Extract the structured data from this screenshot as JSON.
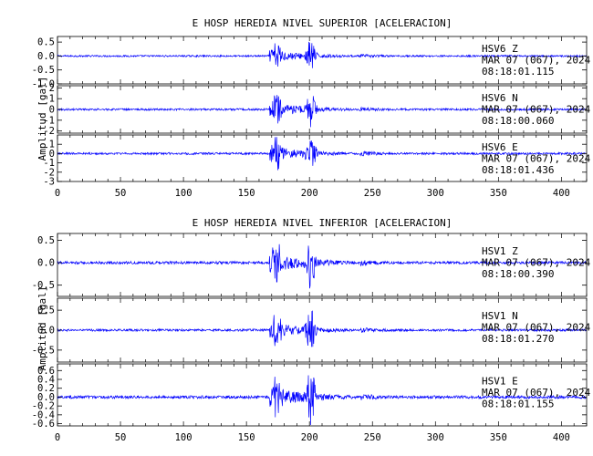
{
  "chart_data": [
    {
      "type": "line",
      "title": "E HOSP HEREDIA NIVEL SUPERIOR [ACELERACION]",
      "ylabel": "Amplitud [gal]",
      "xlabel": "",
      "xlim": [
        0,
        420
      ],
      "x_ticks": [
        "0",
        "50",
        "100",
        "150",
        "200",
        "250",
        "300",
        "350",
        "400"
      ],
      "line_color": "#0000ff",
      "grid": false,
      "panels": [
        {
          "name": "HSV6 Z",
          "label_lines": [
            "HSV6   Z",
            "MAR 07 (067), 2024",
            "08:18:01.115"
          ],
          "ylim": [
            -1.0,
            0.7
          ],
          "y_ticks": [
            "0.5",
            "0.0",
            "-0.5",
            "-1.0"
          ],
          "peak": 0.6
        },
        {
          "name": "HSV6 N",
          "label_lines": [
            "HSV6   N",
            "MAR 07 (067), 2024",
            "08:18:00.060"
          ],
          "ylim": [
            -2.2,
            2.2
          ],
          "y_ticks": [
            "2",
            "1",
            "0",
            "-1",
            "-2"
          ],
          "peak": 1.8
        },
        {
          "name": "HSV6 E",
          "label_lines": [
            "HSV6   E",
            "MAR 07 (067), 2024",
            "08:18:01.436"
          ],
          "ylim": [
            -3.0,
            2.0
          ],
          "y_ticks": [
            "1",
            "0",
            "-1",
            "-2",
            "-3"
          ],
          "peak": 2.2
        }
      ]
    },
    {
      "type": "line",
      "title": "E HOSP HEREDIA NIVEL INFERIOR [ACELERACION]",
      "ylabel": "Amplitud [gal]",
      "xlabel": "",
      "xlim": [
        0,
        420
      ],
      "x_ticks": [
        "0",
        "50",
        "100",
        "150",
        "200",
        "250",
        "300",
        "350",
        "400"
      ],
      "line_color": "#0000ff",
      "grid": false,
      "panels": [
        {
          "name": "HSV1 Z",
          "label_lines": [
            "HSV1   Z",
            "MAR 07 (067), 2024",
            "08:18:00.390"
          ],
          "ylim": [
            -0.75,
            0.65
          ],
          "y_ticks": [
            "0.5",
            "0.0",
            "-0.5"
          ],
          "peak": 0.6
        },
        {
          "name": "HSV1 N",
          "label_lines": [
            "HSV1   N",
            "MAR 07 (067), 2024",
            "08:18:01.270"
          ],
          "ylim": [
            -0.8,
            0.8
          ],
          "y_ticks": [
            "0.5",
            "0.0",
            "-0.5"
          ],
          "peak": 0.55
        },
        {
          "name": "HSV1 E",
          "label_lines": [
            "HSV1   E",
            "MAR 07 (067), 2024",
            "08:18:01.155"
          ],
          "ylim": [
            -0.65,
            0.75
          ],
          "y_ticks": [
            "0.6",
            "0.4",
            "0.2",
            "0.0",
            "-0.2",
            "-0.4",
            "-0.6"
          ],
          "peak": 0.65
        }
      ]
    }
  ]
}
